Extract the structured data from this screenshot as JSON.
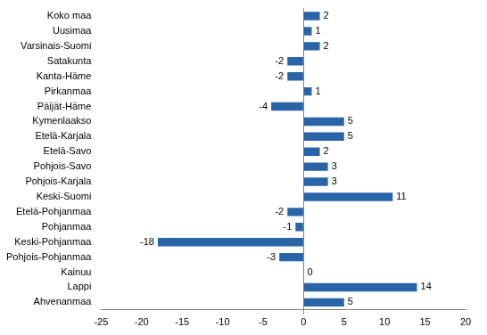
{
  "chart_data": {
    "type": "bar",
    "orientation": "horizontal",
    "categories": [
      "Koko maa",
      "Uusimaa",
      "Varsinais-Suomi",
      "Satakunta",
      "Kanta-Häme",
      "Pirkanmaa",
      "Päijät-Häme",
      "Kymenlaakso",
      "Etelä-Karjala",
      "Etelä-Savo",
      "Pohjois-Savo",
      "Pohjois-Karjala",
      "Keski-Suomi",
      "Etelä-Pohjanmaa",
      "Pohjanmaa",
      "Keski-Pohjanmaa",
      "Pohjois-Pohjanmaa",
      "Kainuu",
      "Lappi",
      "Ahvenanmaa"
    ],
    "values": [
      2,
      1,
      2,
      -2,
      -2,
      1,
      -4,
      5,
      5,
      2,
      3,
      3,
      11,
      -2,
      -1,
      -18,
      -3,
      0,
      14,
      5
    ],
    "color": "#2a64a8",
    "xlim": [
      -25,
      20
    ],
    "xticks": [
      -25,
      -20,
      -15,
      -10,
      -5,
      0,
      5,
      10,
      15,
      20
    ],
    "grid": false,
    "data_labels": true
  }
}
